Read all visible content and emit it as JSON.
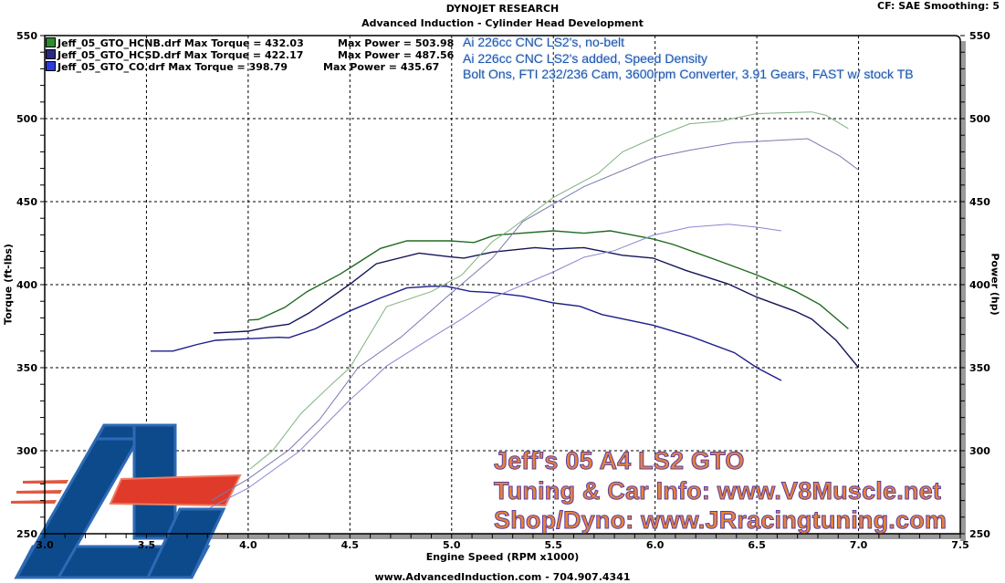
{
  "header": {
    "title": "DYNOJET RESEARCH",
    "subtitle": "Advanced Induction - Cylinder Head Development",
    "settings": "CF: SAE  Smoothing: 5"
  },
  "legend": [
    {
      "file": "Jeff_05_GTO_HCNB.drf",
      "torque_text": "Jeff_05_GTO_HCNB.drf Max Torque = 432.03",
      "power_text": "Max Power = 503.98",
      "color": "#2e8b2e"
    },
    {
      "file": "Jeff_05_GTO_HCSD.drf",
      "torque_text": "Jeff_05_GTO_HCSD.drf Max Torque = 422.17",
      "power_text": "Max Power = 487.56",
      "color": "#2a2a80"
    },
    {
      "file": "Jeff_05_GTO_CO.drf",
      "torque_text": "Jeff_05_GTO_CO.drf Max Torque = 398.79",
      "power_text": "Max Power = 435.67",
      "color": "#2c3ce0"
    }
  ],
  "notes": [
    "Ai 226cc CNC LS2's, no-belt",
    "Ai 226cc CNC LS2's added, Speed Density",
    "Bolt Ons, FTI 232/236 Cam, 3600rpm Converter, 3.91 Gears, FAST w/ stock TB"
  ],
  "watermark": [
    "Jeff's 05 A4 LS2 GTO",
    "Tuning & Car Info: www.V8Muscle.net",
    "Shop/Dyno: www.JRracingtuning.com"
  ],
  "footer": "www.AdvancedInduction.com  -  704.907.4341",
  "chart_data": {
    "type": "line",
    "title": "DYNOJET RESEARCH",
    "subtitle": "Advanced Induction - Cylinder Head Development",
    "xlabel": "Engine Speed (RPM x1000)",
    "ylabel": "Torque (ft-lbs)",
    "y2label": "Power (hp)",
    "xlim": [
      3.0,
      7.5
    ],
    "ylim": [
      250,
      550
    ],
    "y2lim": [
      250,
      550
    ],
    "xticks": [
      "3.0",
      "3.5",
      "4.0",
      "4.5",
      "5.0",
      "5.5",
      "6.0",
      "6.5",
      "7.0",
      "7.5"
    ],
    "yticks": [
      "250",
      "300",
      "350",
      "400",
      "450",
      "500",
      "550"
    ],
    "grid": true,
    "legend_position": "top-left",
    "series": [
      {
        "name": "Jeff_05_GTO_HCNB.drf",
        "measure": "torque",
        "color": "#1f6b1f",
        "x": [
          4.0,
          4.05,
          4.18,
          4.29,
          4.45,
          4.54,
          4.65,
          4.78,
          4.99,
          5.11,
          5.2,
          5.23,
          5.5,
          5.65,
          5.78,
          5.99,
          6.09,
          6.32,
          6.5,
          6.69,
          6.81,
          6.95
        ],
        "y": [
          378.7,
          379,
          386.3,
          395.8,
          406.2,
          413.2,
          421.8,
          426.4,
          426.4,
          425.4,
          429.3,
          430,
          432.4,
          431,
          432.4,
          427.5,
          424.2,
          414,
          405.8,
          396,
          388,
          373.4
        ]
      },
      {
        "name": "Jeff_05_GTO_HCSD.drf",
        "measure": "torque",
        "color": "#14145a",
        "x": [
          3.83,
          4.0,
          4.09,
          4.2,
          4.3,
          4.5,
          4.63,
          4.84,
          4.99,
          5.06,
          5.2,
          5.41,
          5.5,
          5.65,
          5.84,
          5.99,
          6.15,
          6.36,
          6.5,
          6.69,
          6.77,
          6.89,
          7.0
        ],
        "y": [
          370.9,
          372,
          374.3,
          376.2,
          383,
          400.3,
          412.6,
          419,
          416.8,
          416,
          419.6,
          422.3,
          421.4,
          422.3,
          417.7,
          416,
          408.6,
          400.4,
          392.5,
          383.9,
          379.3,
          366.5,
          350
        ]
      },
      {
        "name": "Jeff_05_GTO_CO.drf",
        "measure": "torque",
        "color": "#1c1c8c",
        "x": [
          3.52,
          3.63,
          3.75,
          3.84,
          4.0,
          4.15,
          4.2,
          4.33,
          4.5,
          4.65,
          4.78,
          4.9,
          4.975,
          5.09,
          5.2,
          5.35,
          5.5,
          5.63,
          5.74,
          5.99,
          6.17,
          6.39,
          6.5,
          6.62
        ],
        "y": [
          360,
          360,
          364,
          366.5,
          367.4,
          368.3,
          368,
          373.4,
          384.2,
          392,
          398,
          399,
          399,
          396,
          395.2,
          393,
          389,
          387,
          382,
          375.6,
          369,
          359,
          350,
          342.3
        ]
      },
      {
        "name": "Jeff_05_GTO_HCNB.drf",
        "measure": "power",
        "color": "#7fb07f",
        "x": [
          4.01,
          4.12,
          4.26,
          4.41,
          4.5,
          4.68,
          4.9,
          5.05,
          5.2,
          5.29,
          5.5,
          5.72,
          5.84,
          5.99,
          6.17,
          6.32,
          6.5,
          6.77,
          6.84,
          6.95
        ],
        "y": [
          289,
          300,
          322.5,
          340,
          350,
          386.8,
          395.8,
          405.8,
          426,
          433.3,
          452.5,
          467,
          480,
          488.2,
          496.9,
          498.4,
          503,
          504,
          502,
          494
        ]
      },
      {
        "name": "Jeff_05_GTO_HCSD.drf",
        "measure": "power",
        "color": "#7a78b0",
        "x": [
          3.82,
          4.0,
          4.2,
          4.35,
          4.48,
          4.54,
          4.75,
          4.97,
          5.2,
          5.35,
          5.65,
          5.99,
          6.17,
          6.39,
          6.75,
          6.91,
          7.0
        ],
        "y": [
          270,
          283,
          300.5,
          318.7,
          340,
          350,
          368.3,
          392,
          416,
          438,
          459,
          476.4,
          481,
          485.5,
          487.9,
          477.3,
          469
        ]
      },
      {
        "name": "Jeff_05_GTO_CO.drf",
        "measure": "power",
        "color": "#8a86d0",
        "x": [
          3.81,
          4.0,
          4.25,
          4.5,
          4.59,
          4.68,
          4.9,
          5.05,
          5.2,
          5.5,
          5.65,
          5.8,
          5.99,
          6.17,
          6.36,
          6.5,
          6.62
        ],
        "y": [
          265.5,
          277.5,
          299.5,
          330.6,
          340.6,
          351,
          368,
          379.3,
          392,
          407.7,
          416.5,
          420.5,
          429.7,
          434.6,
          436.4,
          434.6,
          432.4
        ]
      }
    ]
  }
}
